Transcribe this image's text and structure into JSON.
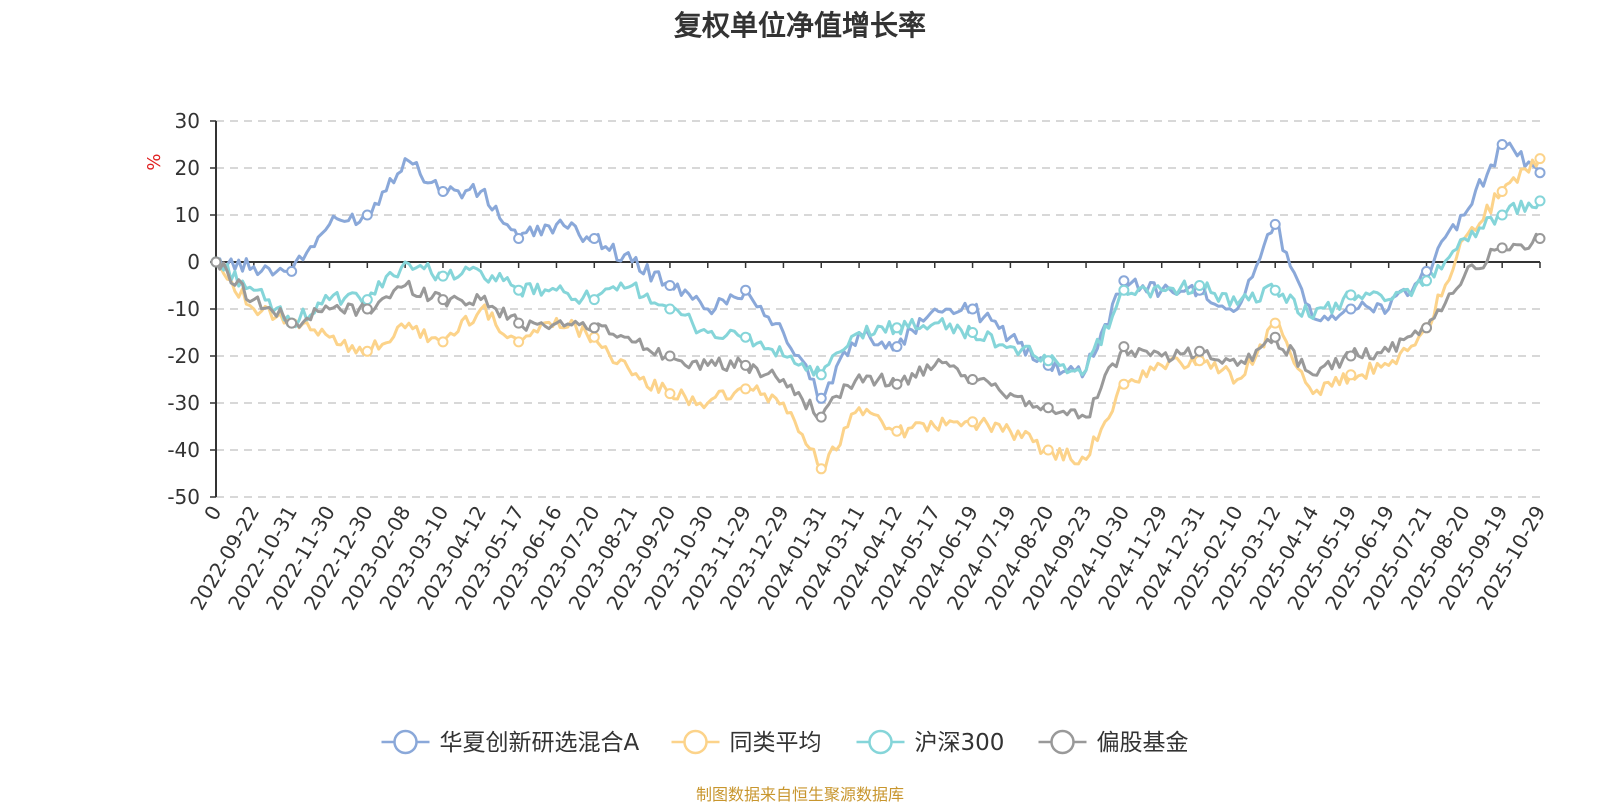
{
  "chart_data": {
    "type": "line",
    "title": "复权单位净值增长率",
    "ylabel": "%",
    "xlabel": "",
    "ylim": [
      -50,
      30
    ],
    "yticks": [
      30,
      20,
      10,
      0,
      -10,
      -20,
      -30,
      -40,
      -50
    ],
    "categories": [
      "0",
      "2022-09-22",
      "2022-10-31",
      "2022-11-30",
      "2022-12-30",
      "2023-02-08",
      "2023-03-10",
      "2023-04-12",
      "2023-05-17",
      "2023-06-16",
      "2023-07-20",
      "2023-08-21",
      "2023-09-20",
      "2023-10-30",
      "2023-11-29",
      "2023-12-29",
      "2024-01-31",
      "2024-03-11",
      "2024-04-12",
      "2024-05-17",
      "2024-06-19",
      "2024-07-19",
      "2024-08-20",
      "2024-09-23",
      "2024-10-30",
      "2024-11-29",
      "2024-12-31",
      "2025-02-10",
      "2025-03-12",
      "2025-04-14",
      "2025-05-19",
      "2025-06-19",
      "2025-07-21",
      "2025-08-20",
      "2025-09-19",
      "2025-10-29"
    ],
    "legend_position": "bottom",
    "grid": true,
    "series": [
      {
        "name": "华夏创新研选混合A",
        "color": "#8aa8d9",
        "values": [
          0,
          -1,
          -2,
          8,
          10,
          22,
          15,
          15,
          5,
          8,
          5,
          0,
          -5,
          -10,
          -6,
          -15,
          -29,
          -15,
          -18,
          -10,
          -10,
          -16,
          -22,
          -23,
          -4,
          -6,
          -6,
          -10,
          8,
          -12,
          -10,
          -10,
          -2,
          10,
          25,
          19
        ]
      },
      {
        "name": "同类平均",
        "color": "#fcd38a",
        "values": [
          0,
          -10,
          -13,
          -16,
          -19,
          -14,
          -17,
          -10,
          -17,
          -12,
          -16,
          -24,
          -28,
          -30,
          -27,
          -30,
          -44,
          -31,
          -36,
          -35,
          -34,
          -36,
          -40,
          -42,
          -26,
          -22,
          -21,
          -25,
          -13,
          -28,
          -24,
          -22,
          -14,
          5,
          15,
          22
        ]
      },
      {
        "name": "沪深300",
        "color": "#85d5d9",
        "values": [
          0,
          -6,
          -13,
          -8,
          -8,
          0,
          -3,
          -2,
          -6,
          -6,
          -8,
          -5,
          -10,
          -15,
          -16,
          -20,
          -24,
          -15,
          -14,
          -13,
          -15,
          -18,
          -21,
          -23,
          -6,
          -6,
          -5,
          -9,
          -6,
          -12,
          -7,
          -8,
          -4,
          5,
          10,
          13
        ]
      },
      {
        "name": "偏股基金",
        "color": "#999999",
        "values": [
          0,
          -8,
          -13,
          -10,
          -10,
          -5,
          -8,
          -8,
          -13,
          -13,
          -14,
          -17,
          -20,
          -22,
          -22,
          -25,
          -33,
          -24,
          -26,
          -22,
          -25,
          -28,
          -31,
          -33,
          -18,
          -20,
          -19,
          -22,
          -16,
          -24,
          -20,
          -19,
          -14,
          -3,
          3,
          5
        ]
      }
    ]
  },
  "source": "制图数据来自恒生聚源数据库"
}
